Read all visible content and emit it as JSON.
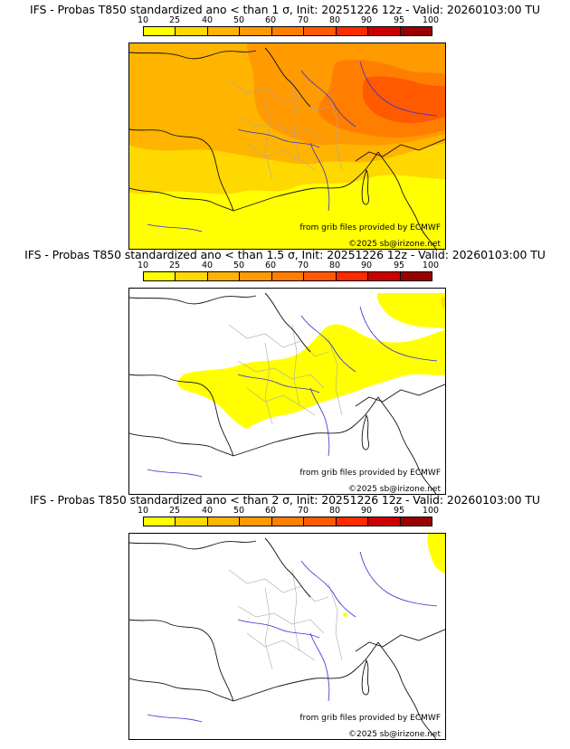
{
  "colors": {
    "scale": [
      "#ffff00",
      "#ffd800",
      "#ffb400",
      "#ff9a00",
      "#ff7e00",
      "#ff5a00",
      "#ff2a00",
      "#cc0000",
      "#990000",
      "#660000"
    ],
    "sea_border": "#111111",
    "rivers": "#3333cc",
    "admin": "#aaaaaa"
  },
  "legend": {
    "ticks": [
      "10",
      "25",
      "40",
      "50",
      "60",
      "70",
      "80",
      "90",
      "95",
      "100"
    ]
  },
  "panels": [
    {
      "title": "IFS - Probas T850  standardized ano < than 1 σ, Init: 20251226 12z - Valid: 20260103:00 TU",
      "threshold": "1 σ",
      "grib_credit": "from grib files provided by ECMWF",
      "copyright": "©2025 sb@irizone.net"
    },
    {
      "title": "IFS - Probas T850  standardized ano < than 1.5 σ, Init: 20251226 12z - Valid: 20260103:00 TU",
      "threshold": "1.5 σ",
      "grib_credit": "from grib files provided by ECMWF",
      "copyright": "©2025 sb@irizone.net"
    },
    {
      "title": "IFS - Probas T850  standardized ano < than 2 σ, Init: 20251226 12z - Valid: 20260103:00 TU",
      "threshold": "2 σ",
      "grib_credit": "from grib files provided by ECMWF",
      "copyright": "©2025 sb@irizone.net"
    }
  ]
}
